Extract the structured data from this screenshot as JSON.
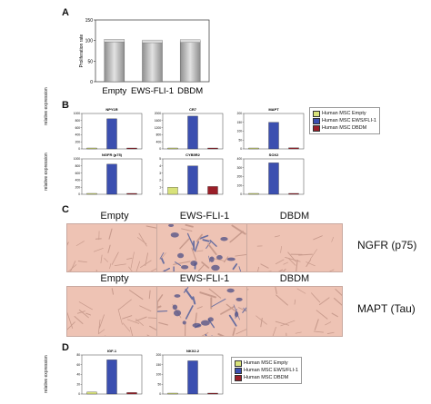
{
  "panels": {
    "a": "A",
    "b": "B",
    "c": "C",
    "d": "D"
  },
  "panel_a": {
    "ylabel": "Proliferation rate",
    "categories": [
      "Empty",
      "EWS-FLI-1",
      "DBDM"
    ],
    "values": [
      100,
      98,
      99
    ],
    "ylim": [
      0,
      150
    ],
    "ticks": [
      "0",
      "50",
      "100",
      "150"
    ],
    "bar_color": "#b9b9b9"
  },
  "legend_b": {
    "items": [
      {
        "label": "Human MSC Empty",
        "color": "#d8e27a"
      },
      {
        "label": "Human MSC EWS/FLI-1",
        "color": "#3b4fb0"
      },
      {
        "label": "Human MSC DBDM",
        "color": "#9a1f28"
      }
    ]
  },
  "legend_d": {
    "items": [
      {
        "label": "Human MSC Empty",
        "color": "#d8e27a"
      },
      {
        "label": "Human MSC EWS/FLI-1",
        "color": "#3b4fb0"
      },
      {
        "label": "Human MSC DBDM",
        "color": "#9a1f28"
      }
    ]
  },
  "panel_b_ylabel": "relative expression",
  "panel_d_ylabel": "relative expression",
  "chart_data": [
    {
      "type": "bar",
      "title": "NPY1R",
      "categories": [
        "Empty",
        "EWS/FLI-1",
        "DBDM"
      ],
      "values": [
        1,
        850,
        1
      ],
      "ylim": [
        0,
        1000
      ],
      "ticks": [
        "0",
        "200",
        "400",
        "600",
        "800",
        "1000"
      ]
    },
    {
      "type": "bar",
      "title": "CR7",
      "categories": [
        "Empty",
        "EWS/FLI-1",
        "DBDM"
      ],
      "values": [
        1,
        1850,
        1
      ],
      "ylim": [
        0,
        2000
      ],
      "ticks": [
        "0",
        "400",
        "800",
        "1200",
        "1600",
        "2000"
      ]
    },
    {
      "type": "bar",
      "title": "MAPT",
      "categories": [
        "Empty",
        "EWS/FLI-1",
        "DBDM"
      ],
      "values": [
        5,
        150,
        6
      ],
      "ylim": [
        0,
        200
      ],
      "ticks": [
        "0",
        "50",
        "100",
        "150",
        "200"
      ]
    },
    {
      "type": "bar",
      "title": "NGFR (p75)",
      "categories": [
        "Empty",
        "EWS/FLI-1",
        "DBDM"
      ],
      "values": [
        1,
        850,
        2
      ],
      "ylim": [
        0,
        1000
      ],
      "ticks": [
        "0",
        "200",
        "400",
        "600",
        "800",
        "1000"
      ]
    },
    {
      "type": "bar",
      "title": "CYB5R2",
      "categories": [
        "Empty",
        "EWS/FLI-1",
        "DBDM"
      ],
      "values": [
        1.0,
        4.0,
        1.1
      ],
      "ylim": [
        0,
        5
      ],
      "ticks": [
        "0",
        "1",
        "2",
        "3",
        "4",
        "5"
      ]
    },
    {
      "type": "bar",
      "title": "SOX2",
      "categories": [
        "Empty",
        "EWS/FLI-1",
        "DBDM"
      ],
      "values": [
        2,
        355,
        3
      ],
      "ylim": [
        0,
        400
      ],
      "ticks": [
        "0",
        "100",
        "200",
        "300",
        "400"
      ]
    },
    {
      "type": "bar",
      "title": "IGF-1",
      "categories": [
        "Empty",
        "EWS/FLI-1",
        "DBDM"
      ],
      "values": [
        4,
        70,
        3
      ],
      "ylim": [
        0,
        80
      ],
      "ticks": [
        "0",
        "20",
        "40",
        "60",
        "80"
      ]
    },
    {
      "type": "bar",
      "title": "NKX2.2",
      "categories": [
        "Empty",
        "EWS/FLI-1",
        "DBDM"
      ],
      "values": [
        1,
        170,
        1
      ],
      "ylim": [
        0,
        200
      ],
      "ticks": [
        "0",
        "50",
        "100",
        "150",
        "200"
      ]
    }
  ],
  "panel_c": {
    "col_labels_row1": [
      "Empty",
      "EWS-FLI-1",
      "DBDM"
    ],
    "col_labels_row2": [
      "Empty",
      "EWS-FLI-1",
      "DBDM"
    ],
    "row_labels": [
      "NGFR (p75)",
      "MAPT (Tau)"
    ],
    "photo_bg": "#eec3b4"
  }
}
